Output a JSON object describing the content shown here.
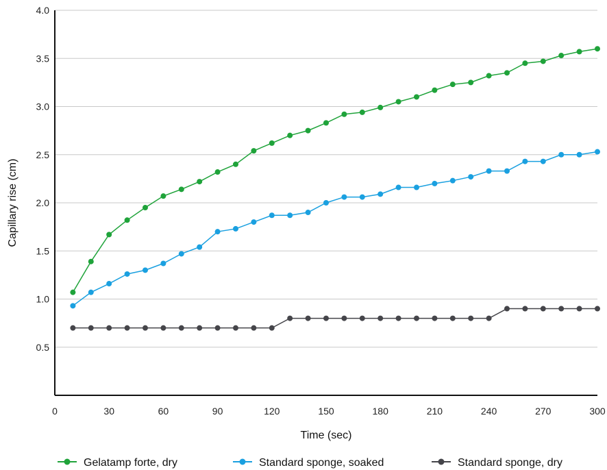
{
  "chart_data": {
    "type": "line",
    "xlabel": "Time (sec)",
    "ylabel": "Capillary rise (cm)",
    "xlim": [
      0,
      300
    ],
    "ylim": [
      0,
      4.0
    ],
    "xticks": [
      "0",
      "30",
      "60",
      "90",
      "120",
      "150",
      "180",
      "210",
      "240",
      "270",
      "300"
    ],
    "yticks": [
      "0.5",
      "1.0",
      "1.5",
      "2.0",
      "2.5",
      "3.0",
      "3.5",
      "4.0"
    ],
    "grid": "horizontal",
    "legend_position": "bottom",
    "x": [
      10,
      20,
      30,
      40,
      50,
      60,
      70,
      80,
      90,
      100,
      110,
      120,
      130,
      140,
      150,
      160,
      170,
      180,
      190,
      200,
      210,
      220,
      230,
      240,
      250,
      260,
      270,
      280,
      290,
      300
    ],
    "series": [
      {
        "name": "Gelatamp forte, dry",
        "color": "#1fa33a",
        "values": [
          1.07,
          1.39,
          1.67,
          1.82,
          1.95,
          2.07,
          2.14,
          2.22,
          2.32,
          2.4,
          2.54,
          2.62,
          2.7,
          2.75,
          2.83,
          2.92,
          2.94,
          2.99,
          3.05,
          3.1,
          3.17,
          3.23,
          3.25,
          3.32,
          3.35,
          3.45,
          3.47,
          3.53,
          3.57,
          3.6
        ]
      },
      {
        "name": "Standard sponge, soaked",
        "color": "#1aa0e0",
        "values": [
          0.93,
          1.07,
          1.16,
          1.26,
          1.3,
          1.37,
          1.47,
          1.54,
          1.7,
          1.73,
          1.8,
          1.87,
          1.87,
          1.9,
          2.0,
          2.06,
          2.06,
          2.09,
          2.16,
          2.16,
          2.2,
          2.23,
          2.27,
          2.33,
          2.33,
          2.43,
          2.43,
          2.5,
          2.5,
          2.53
        ]
      },
      {
        "name": "Standard sponge, dry",
        "color": "#45454a",
        "values": [
          0.7,
          0.7,
          0.7,
          0.7,
          0.7,
          0.7,
          0.7,
          0.7,
          0.7,
          0.7,
          0.7,
          0.7,
          0.8,
          0.8,
          0.8,
          0.8,
          0.8,
          0.8,
          0.8,
          0.8,
          0.8,
          0.8,
          0.8,
          0.8,
          0.9,
          0.9,
          0.9,
          0.9,
          0.9,
          0.9
        ]
      }
    ]
  }
}
